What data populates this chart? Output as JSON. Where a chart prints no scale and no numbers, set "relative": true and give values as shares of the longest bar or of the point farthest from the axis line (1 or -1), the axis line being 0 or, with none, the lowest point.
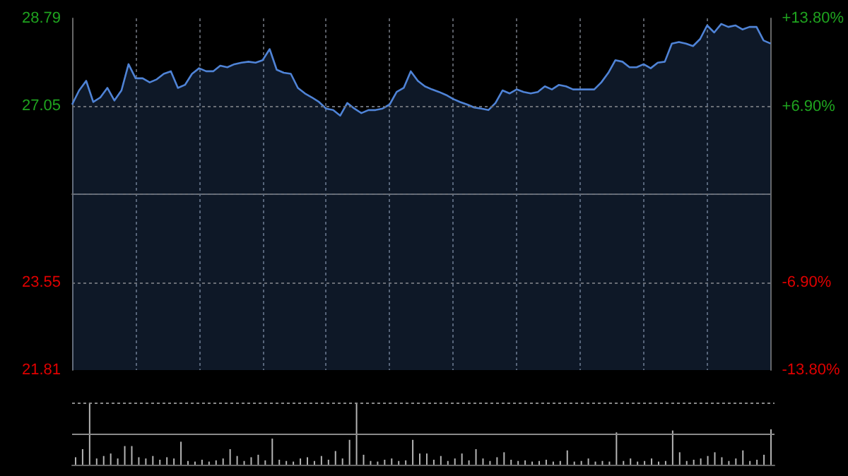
{
  "chart_data": [
    {
      "type": "area",
      "categories": [
        null,
        null,
        null,
        null,
        null,
        null,
        null,
        null,
        null,
        null,
        null,
        null,
        null,
        null,
        null,
        null,
        null,
        null,
        null,
        null,
        null,
        null,
        null,
        null,
        null,
        null,
        null,
        null,
        null,
        null,
        null,
        null,
        null,
        null,
        null,
        null,
        null,
        null,
        null,
        null,
        null,
        null,
        null,
        null,
        null,
        null,
        null,
        null,
        null,
        null,
        null,
        null,
        null,
        null,
        null,
        null,
        null,
        null,
        null,
        null,
        null,
        null,
        null,
        null,
        null,
        null,
        null,
        null,
        null,
        null,
        null,
        null,
        null,
        null,
        null,
        null,
        null,
        null,
        null,
        null,
        null,
        null,
        null,
        null,
        null,
        null,
        null,
        null,
        null,
        null,
        null,
        null,
        null,
        null,
        null,
        null,
        null,
        null,
        null,
        null
      ],
      "series": [
        {
          "color": "#4f83d6",
          "values": [
            27.08,
            27.36,
            27.55,
            27.13,
            27.22,
            27.41,
            27.16,
            27.36,
            27.88,
            27.6,
            27.6,
            27.52,
            27.58,
            27.69,
            27.74,
            27.41,
            27.47,
            27.69,
            27.8,
            27.74,
            27.74,
            27.85,
            27.82,
            27.88,
            27.91,
            27.93,
            27.91,
            27.96,
            28.18,
            27.77,
            27.71,
            27.69,
            27.41,
            27.3,
            27.22,
            27.13,
            27.0,
            26.97,
            26.86,
            27.11,
            27.0,
            26.91,
            26.97,
            26.97,
            27.0,
            27.08,
            27.33,
            27.41,
            27.74,
            27.55,
            27.44,
            27.38,
            27.33,
            27.27,
            27.19,
            27.13,
            27.08,
            27.02,
            27.0,
            26.97,
            27.11,
            27.36,
            27.3,
            27.38,
            27.33,
            27.3,
            27.33,
            27.44,
            27.38,
            27.47,
            27.44,
            27.38,
            27.38,
            27.38,
            27.38,
            27.52,
            27.71,
            27.96,
            27.93,
            27.82,
            27.82,
            27.88,
            27.8,
            27.91,
            27.93,
            28.29,
            28.32,
            28.29,
            28.24,
            28.38,
            28.65,
            28.51,
            28.68,
            28.62,
            28.65,
            28.57,
            28.62,
            28.62,
            28.35,
            28.29
          ]
        }
      ],
      "ylim": [
        21.81,
        28.79
      ],
      "yticks": [
        21.81,
        23.55,
        {
          "value": 25.3,
          "label": null
        },
        27.05,
        28.79
      ],
      "y2lim": [
        -13.8,
        13.8
      ],
      "y2ticks": [
        {
          "value": -13.8,
          "label": "-13.80%"
        },
        {
          "value": -6.9,
          "label": "-6.90%"
        },
        {
          "value": 0,
          "label": null
        },
        {
          "value": 6.9,
          "label": "+6.90%"
        },
        {
          "value": 13.8,
          "label": "+13.80%"
        }
      ],
      "grid": true,
      "marker": "none"
    },
    {
      "type": "bar",
      "relative": true,
      "categories": [
        null,
        null,
        null,
        null,
        null,
        null,
        null,
        null,
        null,
        null,
        null,
        null,
        null,
        null,
        null,
        null,
        null,
        null,
        null,
        null,
        null,
        null,
        null,
        null,
        null,
        null,
        null,
        null,
        null,
        null,
        null,
        null,
        null,
        null,
        null,
        null,
        null,
        null,
        null,
        null,
        null,
        null,
        null,
        null,
        null,
        null,
        null,
        null,
        null,
        null,
        null,
        null,
        null,
        null,
        null,
        null,
        null,
        null,
        null,
        null,
        null,
        null,
        null,
        null,
        null,
        null,
        null,
        null,
        null,
        null,
        null,
        null,
        null,
        null,
        null,
        null,
        null,
        null,
        null,
        null,
        null,
        null,
        null,
        null,
        null,
        null,
        null,
        null,
        null,
        null,
        null,
        null,
        null,
        null,
        null,
        null,
        null,
        null,
        null,
        null
      ],
      "series": [
        {
          "color": "#b4b4b4",
          "values": [
            0.12,
            0.25,
            1.0,
            0.1,
            0.14,
            0.18,
            0.1,
            0.3,
            0.3,
            0.12,
            0.1,
            0.14,
            0.08,
            0.12,
            0.1,
            0.37,
            0.06,
            0.05,
            0.08,
            0.05,
            0.07,
            0.1,
            0.25,
            0.14,
            0.06,
            0.12,
            0.16,
            0.07,
            0.42,
            0.08,
            0.06,
            0.05,
            0.1,
            0.12,
            0.06,
            0.14,
            0.08,
            0.22,
            0.1,
            0.4,
            1.0,
            0.16,
            0.06,
            0.05,
            0.08,
            0.1,
            0.06,
            0.07,
            0.4,
            0.18,
            0.18,
            0.08,
            0.14,
            0.06,
            0.1,
            0.18,
            0.07,
            0.25,
            0.1,
            0.06,
            0.12,
            0.2,
            0.08,
            0.06,
            0.07,
            0.05,
            0.06,
            0.08,
            0.05,
            0.06,
            0.23,
            0.05,
            0.06,
            0.1,
            0.05,
            0.06,
            0.05,
            0.52,
            0.06,
            0.1,
            0.05,
            0.06,
            0.1,
            0.05,
            0.06,
            0.55,
            0.2,
            0.06,
            0.08,
            0.1,
            0.14,
            0.2,
            0.12,
            0.06,
            0.1,
            0.23,
            0.06,
            0.08,
            0.16,
            0.57
          ]
        }
      ],
      "ref_lines": [
        {
          "axis": "y",
          "value": 0.5,
          "color": "#8a8a8a",
          "line_style": "solid"
        },
        {
          "axis": "y",
          "value": 1,
          "color": "#8a8a8a",
          "line_style": "dotted"
        }
      ]
    }
  ]
}
